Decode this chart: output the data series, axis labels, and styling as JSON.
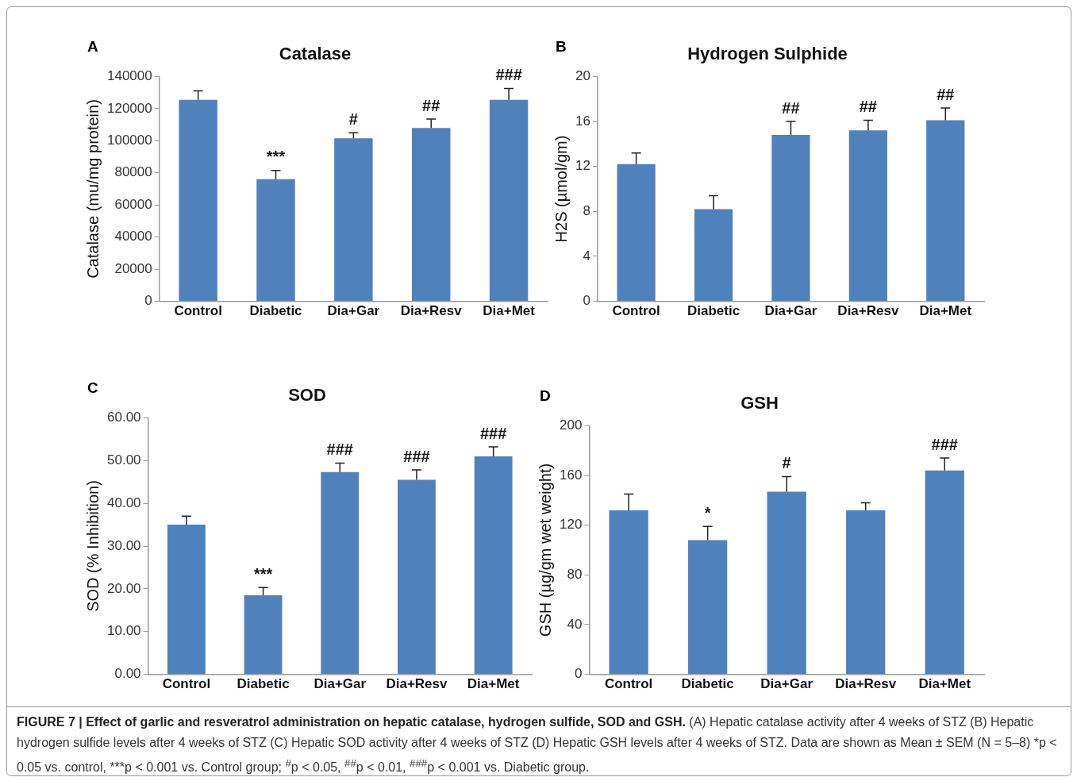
{
  "chart_data": [
    {
      "type": "bar",
      "title": "Catalase",
      "ylabel": "Catalase (mu/mg protein)",
      "categories": [
        "Control",
        "Diabetic",
        "Dia+Gar",
        "Dia+Resv",
        "Dia+Met"
      ],
      "values": [
        125500,
        76000,
        101500,
        108000,
        125500
      ],
      "errors": [
        [
          125500,
          131000
        ],
        [
          76000,
          81500
        ],
        [
          101500,
          105000
        ],
        [
          108000,
          113500
        ],
        [
          125500,
          132500
        ]
      ],
      "value_labels": [
        null,
        "***",
        "#",
        "##",
        "###"
      ],
      "color": "#4f81bd",
      "ylim": [
        0,
        140000
      ],
      "yticks": [
        0,
        20000,
        40000,
        60000,
        80000,
        100000,
        120000,
        140000
      ],
      "grid": false,
      "annotations": [
        "A"
      ]
    },
    {
      "type": "bar",
      "title": "Hydrogen Sulphide",
      "ylabel": "H2S (µmol/gm)",
      "categories": [
        "Control",
        "Diabetic",
        "Dia+Gar",
        "Dia+Resv",
        "Dia+Met"
      ],
      "values": [
        12.2,
        8.2,
        14.8,
        15.2,
        16.1
      ],
      "errors": [
        [
          12.2,
          13.2
        ],
        [
          8.2,
          9.4
        ],
        [
          14.8,
          16.0
        ],
        [
          15.2,
          16.1
        ],
        [
          16.1,
          17.2
        ]
      ],
      "value_labels": [
        null,
        null,
        "##",
        "##",
        "##"
      ],
      "color": "#4f81bd",
      "ylim": [
        0,
        20
      ],
      "yticks": [
        0,
        4,
        8,
        12,
        16,
        20
      ],
      "grid": false,
      "annotations": [
        "B"
      ]
    },
    {
      "type": "bar",
      "title": "SOD",
      "ylabel": "SOD (% Inhibition)",
      "categories": [
        "Control",
        "Diabetic",
        "Dia+Gar",
        "Dia+Resv",
        "Dia+Met"
      ],
      "values": [
        35.0,
        18.5,
        47.3,
        45.5,
        51.0
      ],
      "errors": [
        [
          35.0,
          37.0
        ],
        [
          18.5,
          20.3
        ],
        [
          47.3,
          49.4
        ],
        [
          45.5,
          47.8
        ],
        [
          51.0,
          53.2
        ]
      ],
      "value_labels": [
        null,
        "***",
        "###",
        "###",
        "###"
      ],
      "color": "#4f81bd",
      "ylim": [
        0,
        60
      ],
      "yticks": [
        {
          "value": 0,
          "label": "0.00"
        },
        {
          "value": 10,
          "label": "10.00"
        },
        {
          "value": 20,
          "label": "20.00"
        },
        {
          "value": 30,
          "label": "30.00"
        },
        {
          "value": 40,
          "label": "40.00"
        },
        {
          "value": 50,
          "label": "50.00"
        },
        {
          "value": 60,
          "label": "60.00"
        }
      ],
      "grid": false,
      "annotations": [
        "C"
      ]
    },
    {
      "type": "bar",
      "title": "GSH",
      "ylabel": "GSH (µg/gm wet weight)",
      "categories": [
        "Control",
        "Diabetic",
        "Dia+Gar",
        "Dia+Resv",
        "Dia+Met"
      ],
      "values": [
        132,
        108,
        147,
        132,
        164
      ],
      "errors": [
        [
          132,
          145
        ],
        [
          108,
          119
        ],
        [
          147,
          159
        ],
        [
          132,
          138
        ],
        [
          164,
          174
        ]
      ],
      "value_labels": [
        null,
        "*",
        "#",
        null,
        "###"
      ],
      "color": "#4f81bd",
      "ylim": [
        0,
        200
      ],
      "yticks": [
        0,
        40,
        80,
        120,
        160,
        200
      ],
      "grid": false,
      "annotations": [
        "D"
      ]
    },
    {
      "type": "other",
      "title": "FIGURE 7 | Effect of garlic and resveratrol administration on hepatic catalase, hydrogen sulfide, SOD and GSH.",
      "annotations": [
        "(A) Hepatic catalase activity after 4 weeks of STZ (B) Hepatic hydrogen sulfide levels after 4 weeks of STZ (C) Hepatic SOD activity after 4 weeks of STZ (D) Hepatic GSH levels after 4 weeks of STZ. Data are shown as Mean ± SEM (N = 5–8) *p < 0.05 vs. control, ***p < 0.001 vs. Control group; $^{#}$p < 0.05, $^{##}$p < 0.01, $^{###}$p < 0.001 vs. Diabetic group."
      ]
    }
  ]
}
